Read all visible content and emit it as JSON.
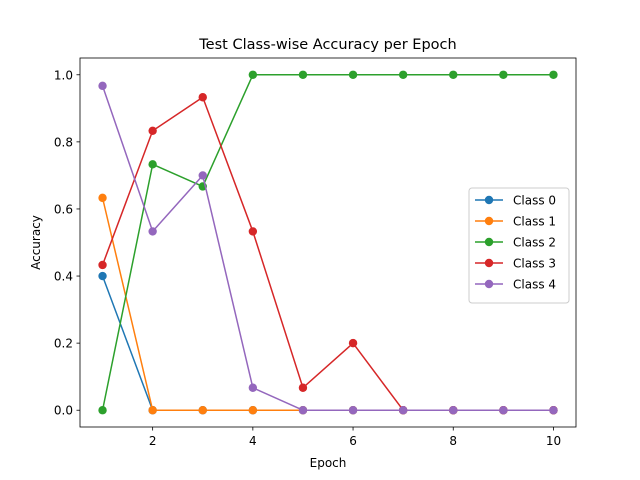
{
  "chart_data": {
    "type": "line",
    "title": "Test Class-wise Accuracy per Epoch",
    "xlabel": "Epoch",
    "ylabel": "Accuracy",
    "x": [
      1,
      2,
      3,
      4,
      5,
      6,
      7,
      8,
      9,
      10
    ],
    "xlim": [
      0.55,
      10.45
    ],
    "ylim": [
      -0.05,
      1.05
    ],
    "xticks": [
      2,
      4,
      6,
      8,
      10
    ],
    "yticks": [
      0.0,
      0.2,
      0.4,
      0.6,
      0.8,
      1.0
    ],
    "xtick_labels": [
      "2",
      "4",
      "6",
      "8",
      "10"
    ],
    "ytick_labels": [
      "0.0",
      "0.2",
      "0.4",
      "0.6",
      "0.8",
      "1.0"
    ],
    "grid": false,
    "legend_position": "center-right",
    "series": [
      {
        "name": "Class 0",
        "color": "#1f77b4",
        "values": [
          0.4,
          0.0,
          0.0,
          0.0,
          0.0,
          0.0,
          0.0,
          0.0,
          0.0,
          0.0
        ]
      },
      {
        "name": "Class 1",
        "color": "#ff7f0e",
        "values": [
          0.633,
          0.0,
          0.0,
          0.0,
          0.0,
          0.0,
          0.0,
          0.0,
          0.0,
          0.0
        ]
      },
      {
        "name": "Class 2",
        "color": "#2ca02c",
        "values": [
          0.0,
          0.733,
          0.667,
          1.0,
          1.0,
          1.0,
          1.0,
          1.0,
          1.0,
          1.0
        ]
      },
      {
        "name": "Class 3",
        "color": "#d62728",
        "values": [
          0.433,
          0.833,
          0.933,
          0.533,
          0.067,
          0.2,
          0.0,
          0.0,
          0.0,
          0.0
        ]
      },
      {
        "name": "Class 4",
        "color": "#9467bd",
        "values": [
          0.967,
          0.533,
          0.7,
          0.067,
          0.0,
          0.0,
          0.0,
          0.0,
          0.0,
          0.0
        ]
      }
    ]
  }
}
